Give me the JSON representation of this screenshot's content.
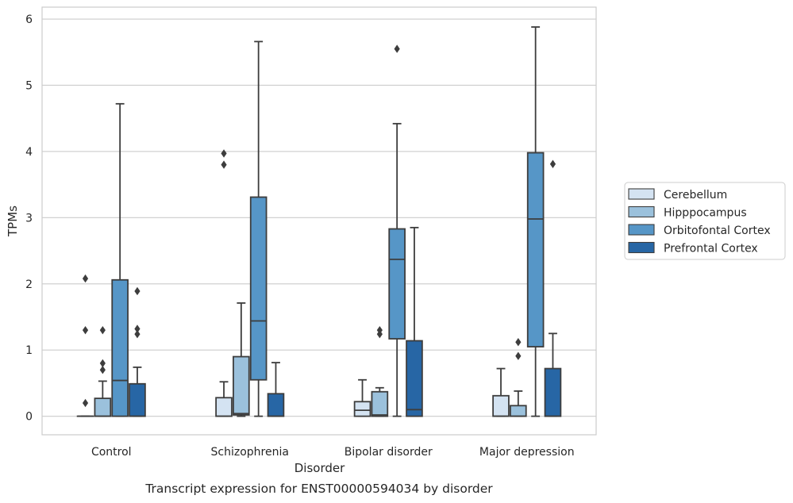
{
  "chart_data": {
    "type": "boxplot",
    "title": "Transcript expression for ENST00000594034 by disorder",
    "xlabel": "Disorder",
    "ylabel": "TPMs",
    "ylim": [
      -0.28,
      6.18
    ],
    "yticks": [
      0,
      1,
      2,
      3,
      4,
      5,
      6
    ],
    "grid": "horizontal",
    "legend_position": "right",
    "categories": [
      "Control",
      "Schizophrenia",
      "Bipolar disorder",
      "Major depression"
    ],
    "series": [
      {
        "name": "Cerebellum",
        "color": "#d4e3f2",
        "boxes": [
          {
            "category": "Control",
            "whislo": 0,
            "q1": 0,
            "med": 0,
            "q3": 0,
            "whishi": 0,
            "fliers": [
              0.2,
              1.3,
              2.08
            ]
          },
          {
            "category": "Schizophrenia",
            "whislo": 0,
            "q1": 0,
            "med": 0,
            "q3": 0.28,
            "whishi": 0.52,
            "fliers": [
              3.8,
              3.97
            ]
          },
          {
            "category": "Bipolar disorder",
            "whislo": 0,
            "q1": 0,
            "med": 0.09,
            "q3": 0.22,
            "whishi": 0.55,
            "fliers": []
          },
          {
            "category": "Major depression",
            "whislo": 0,
            "q1": 0,
            "med": 0,
            "q3": 0.31,
            "whishi": 0.72,
            "fliers": []
          }
        ]
      },
      {
        "name": "Hipppocampus",
        "color": "#9bc1dc",
        "boxes": [
          {
            "category": "Control",
            "whislo": 0,
            "q1": 0,
            "med": 0,
            "q3": 0.27,
            "whishi": 0.53,
            "fliers": [
              0.7,
              0.8,
              1.3
            ]
          },
          {
            "category": "Schizophrenia",
            "whislo": 0,
            "q1": 0.02,
            "med": 0.04,
            "q3": 0.9,
            "whishi": 1.71,
            "fliers": []
          },
          {
            "category": "Bipolar disorder",
            "whislo": 0,
            "q1": 0,
            "med": 0.02,
            "q3": 0.37,
            "whishi": 0.43,
            "fliers": [
              1.24,
              1.3
            ]
          },
          {
            "category": "Major depression",
            "whislo": 0,
            "q1": 0,
            "med": 0,
            "q3": 0.16,
            "whishi": 0.38,
            "fliers": [
              0.91,
              1.12
            ]
          }
        ]
      },
      {
        "name": "Orbitofontal Cortex",
        "color": "#5696c7",
        "boxes": [
          {
            "category": "Control",
            "whislo": 0,
            "q1": 0,
            "med": 0.54,
            "q3": 2.06,
            "whishi": 4.72,
            "fliers": []
          },
          {
            "category": "Schizophrenia",
            "whislo": 0,
            "q1": 0.55,
            "med": 1.44,
            "q3": 3.31,
            "whishi": 5.66,
            "fliers": []
          },
          {
            "category": "Bipolar disorder",
            "whislo": 0,
            "q1": 1.17,
            "med": 2.37,
            "q3": 2.83,
            "whishi": 4.42,
            "fliers": [
              5.55
            ]
          },
          {
            "category": "Major depression",
            "whislo": 0,
            "q1": 1.05,
            "med": 2.98,
            "q3": 3.98,
            "whishi": 5.88,
            "fliers": []
          }
        ]
      },
      {
        "name": "Prefrontal Cortex",
        "color": "#2766a5",
        "boxes": [
          {
            "category": "Control",
            "whislo": 0,
            "q1": 0,
            "med": 0,
            "q3": 0.49,
            "whishi": 0.74,
            "fliers": [
              1.24,
              1.32,
              1.89
            ]
          },
          {
            "category": "Schizophrenia",
            "whislo": 0,
            "q1": 0,
            "med": 0,
            "q3": 0.34,
            "whishi": 0.81,
            "fliers": []
          },
          {
            "category": "Bipolar disorder",
            "whislo": 0,
            "q1": 0,
            "med": 0.1,
            "q3": 1.14,
            "whishi": 2.85,
            "fliers": []
          },
          {
            "category": "Major depression",
            "whislo": 0,
            "q1": 0,
            "med": 0,
            "q3": 0.72,
            "whishi": 1.25,
            "fliers": [
              3.81
            ]
          }
        ]
      }
    ]
  },
  "style": {
    "line_color": "#3d3d3d",
    "grid_color": "#cccccc",
    "frame_color": "#cccccc"
  }
}
